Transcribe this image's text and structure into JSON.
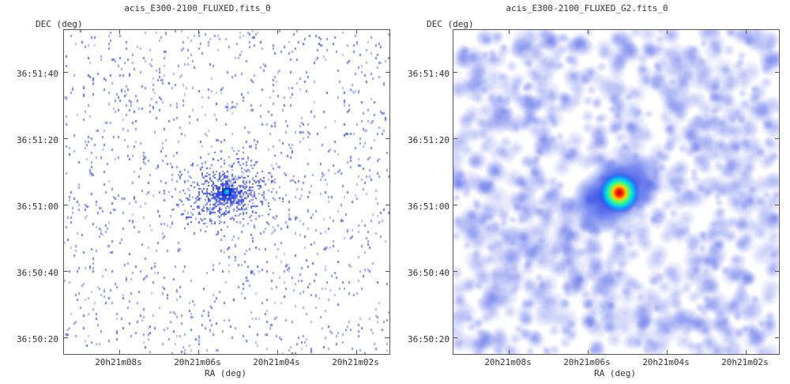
{
  "panels": [
    {
      "title": "acis_E300-2100_FLUXED.fits_0",
      "ylabel": "DEC (deg)",
      "xlabel": "RA (deg)",
      "yticks": [
        "36:51:40",
        "36:51:20",
        "36:51:00",
        "36:50:40",
        "36:50:20"
      ],
      "xticks": [
        "20h21m08s",
        "20h21m06s",
        "20h21m04s",
        "20h21m02s"
      ],
      "style": "binned-counts"
    },
    {
      "title": "acis_E300-2100_FLUXED_G2.fits_0",
      "ylabel": "DEC (deg)",
      "xlabel": "RA (deg)",
      "yticks": [
        "36:51:40",
        "36:51:20",
        "36:51:00",
        "36:50:40",
        "36:50:20"
      ],
      "xticks": [
        "20h21m08s",
        "20h21m06s",
        "20h21m04s",
        "20h21m02s"
      ],
      "style": "gaussian-smoothed"
    }
  ],
  "colors": {
    "low": "#3b4fe0",
    "mid": "#00c8ff",
    "high": "#ff2000",
    "frame": "#555555"
  }
}
